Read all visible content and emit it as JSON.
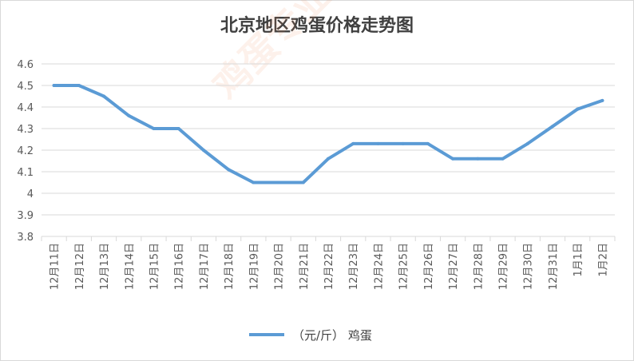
{
  "chart_data": {
    "type": "line",
    "title": "北京地区鸡蛋价格走势图",
    "categories": [
      "12月11日",
      "12月12日",
      "12月13日",
      "12月14日",
      "12月15日",
      "12月16日",
      "12月17日",
      "12月18日",
      "12月19日",
      "12月20日",
      "12月21日",
      "12月22日",
      "12月23日",
      "12月24日",
      "12月25日",
      "12月26日",
      "12月27日",
      "12月28日",
      "12月29日",
      "12月30日",
      "12月31日",
      "1月1日",
      "1月2日"
    ],
    "series": [
      {
        "name": "（元/斤） 鸡蛋",
        "values": [
          4.5,
          4.5,
          4.45,
          4.36,
          4.3,
          4.3,
          4.2,
          4.11,
          4.05,
          4.05,
          4.05,
          4.16,
          4.23,
          4.23,
          4.23,
          4.23,
          4.16,
          4.16,
          4.16,
          4.23,
          4.31,
          4.39,
          4.43
        ]
      }
    ],
    "y_ticks": [
      "4.6",
      "4.5",
      "4.4",
      "4.3",
      "4.2",
      "4.1",
      "4",
      "3.9",
      "3.8"
    ],
    "ylim": [
      3.8,
      4.6
    ],
    "grid": true,
    "legend_position": "bottom",
    "color": "#5b9bd5"
  },
  "watermark": "鸡蛋专业网 www.jbzyw.com"
}
